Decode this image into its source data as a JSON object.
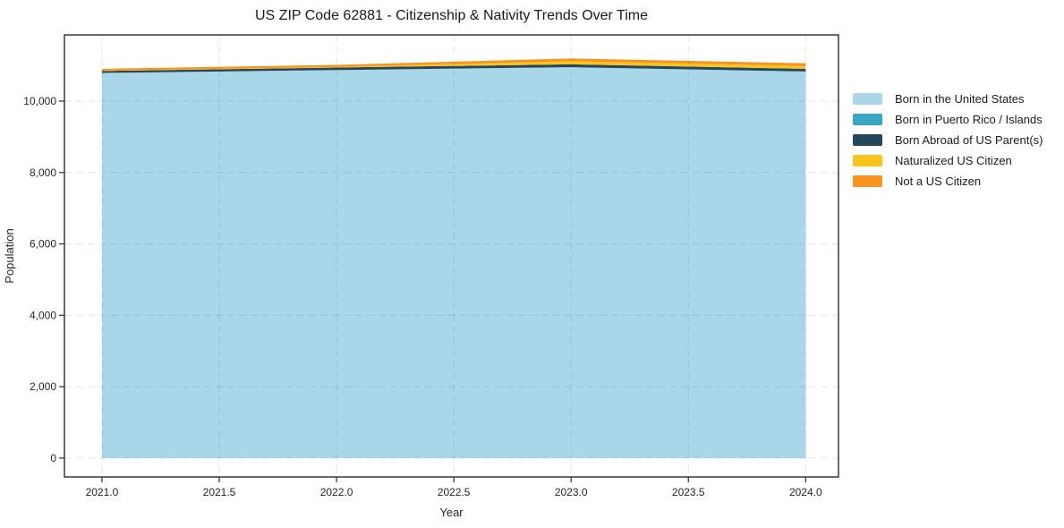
{
  "title": "US ZIP Code 62881 - Citizenship & Nativity Trends Over Time",
  "legend": {
    "position": "right-top",
    "frame": false,
    "items": [
      {
        "label": "Born in the United States",
        "color": "#A9D6E9"
      },
      {
        "label": "Born in Puerto Rico / Islands",
        "color": "#37A7C5"
      },
      {
        "label": "Born Abroad of US Parent(s)",
        "color": "#24475A"
      },
      {
        "label": "Naturalized US Citizen",
        "color": "#FCC21D"
      },
      {
        "label": "Not a US Citizen",
        "color": "#F7941E"
      }
    ]
  },
  "chart_data": {
    "type": "area",
    "stacked": true,
    "title": "US ZIP Code 62881 - Citizenship & Nativity Trends Over Time",
    "xlabel": "Year",
    "ylabel": "Population",
    "x": [
      2021,
      2022,
      2023,
      2024
    ],
    "series": [
      {
        "name": "Born in the United States",
        "color": "#A9D6E9",
        "values": [
          10790,
          10870,
          10950,
          10830
        ]
      },
      {
        "name": "Born in Puerto Rico / Islands",
        "color": "#37A7C5",
        "values": [
          0,
          0,
          0,
          0
        ]
      },
      {
        "name": "Born Abroad of US Parent(s)",
        "color": "#24475A",
        "values": [
          55,
          70,
          80,
          75
        ]
      },
      {
        "name": "Naturalized US Citizen",
        "color": "#FCC21D",
        "values": [
          10,
          15,
          90,
          80
        ]
      },
      {
        "name": "Not a US Citizen",
        "color": "#F7941E",
        "values": [
          50,
          60,
          75,
          75
        ]
      }
    ],
    "xlim": [
      2020.84,
      2024.14
    ],
    "ylim": [
      -530,
      11855
    ],
    "xticks": {
      "values": [
        2021.0,
        2021.5,
        2022.0,
        2022.5,
        2023.0,
        2023.5,
        2024.0
      ],
      "labels": [
        "2021.0",
        "2021.5",
        "2022.0",
        "2022.5",
        "2023.0",
        "2023.5",
        "2024.0"
      ]
    },
    "yticks": {
      "values": [
        0,
        2000,
        4000,
        6000,
        8000,
        10000
      ],
      "labels": [
        "0",
        "2,000",
        "4,000",
        "6,000",
        "8,000",
        "10,000"
      ]
    },
    "grid": true,
    "grid_style": "dashed-over-area",
    "legend_position": "right"
  },
  "style": {
    "spine_color": "#2b2b2b",
    "tick_label_color": "#262626",
    "title_color": "#1a1a1a",
    "grid_color": "rgba(0,0,0,0.10)",
    "background": "#ffffff"
  }
}
